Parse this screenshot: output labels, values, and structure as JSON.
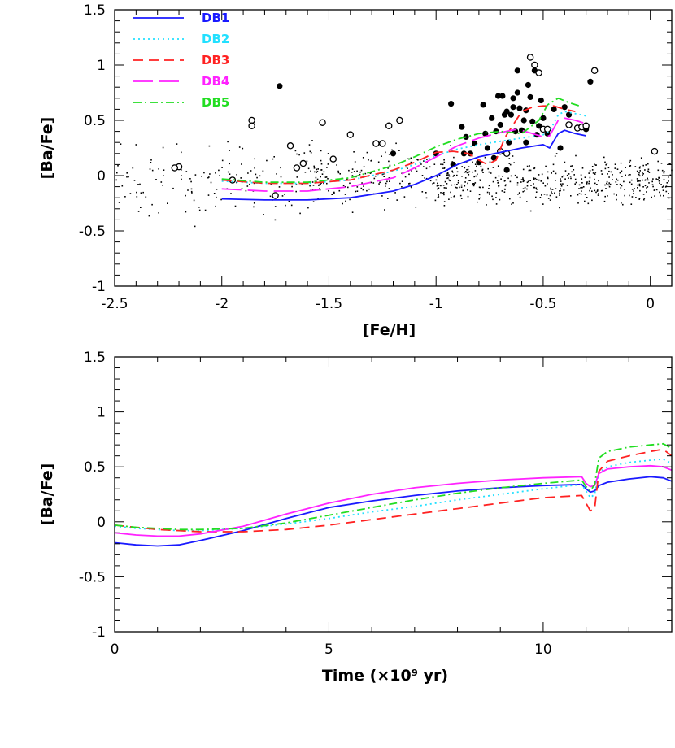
{
  "chart_data": [
    {
      "type": "line",
      "panel": "top",
      "xlabel": "[Fe/H]",
      "ylabel": "[Ba/Fe]",
      "xlim": [
        -2.5,
        0.1
      ],
      "ylim": [
        -1,
        1.5
      ],
      "xticks": [
        -2.5,
        -2,
        -1.5,
        -1,
        -0.5,
        0
      ],
      "xtick_labels": [
        "-2.5",
        "-2",
        "-1.5",
        "-1",
        "-0.5",
        "0"
      ],
      "yticks": [
        -1,
        -0.5,
        0,
        0.5,
        1,
        1.5
      ],
      "ytick_labels": [
        "-1",
        "-0.5",
        "0",
        "0.5",
        "1",
        "1.5"
      ],
      "legend_position": "top-left",
      "series": [
        {
          "name": "DB1",
          "color": "#1a1aff",
          "dash": "solid",
          "x": [
            -2.0,
            -1.8,
            -1.6,
            -1.4,
            -1.2,
            -1.1,
            -1.0,
            -0.9,
            -0.8,
            -0.7,
            -0.6,
            -0.5,
            -0.47,
            -0.43,
            -0.4,
            -0.35,
            -0.3
          ],
          "y": [
            -0.21,
            -0.22,
            -0.22,
            -0.2,
            -0.14,
            -0.08,
            0.0,
            0.1,
            0.17,
            0.21,
            0.25,
            0.28,
            0.25,
            0.38,
            0.41,
            0.38,
            0.36
          ]
        },
        {
          "name": "DB2",
          "color": "#22e0ff",
          "dash": "2,4",
          "x": [
            -2.0,
            -1.8,
            -1.6,
            -1.4,
            -1.2,
            -1.1,
            -1.0,
            -0.9,
            -0.8,
            -0.7,
            -0.6,
            -0.5,
            -0.47,
            -0.43,
            -0.4,
            -0.35,
            -0.3
          ],
          "y": [
            -0.05,
            -0.07,
            -0.07,
            -0.04,
            0.04,
            0.1,
            0.18,
            0.24,
            0.28,
            0.31,
            0.34,
            0.37,
            0.4,
            0.55,
            0.58,
            0.56,
            0.54
          ]
        },
        {
          "name": "DB3",
          "color": "#ff2222",
          "dash": "12,7",
          "x": [
            -2.0,
            -1.8,
            -1.6,
            -1.4,
            -1.2,
            -1.1,
            -1.0,
            -0.92,
            -0.85,
            -0.8,
            -0.76,
            -0.72,
            -0.68,
            -0.64,
            -0.6,
            -0.55,
            -0.5,
            -0.45,
            -0.4,
            -0.35
          ],
          "y": [
            -0.04,
            -0.07,
            -0.07,
            -0.04,
            0.05,
            0.12,
            0.21,
            0.22,
            0.2,
            0.14,
            0.1,
            0.14,
            0.34,
            0.46,
            0.58,
            0.62,
            0.63,
            0.63,
            0.6,
            0.58
          ]
        },
        {
          "name": "DB4",
          "color": "#ff22ff",
          "dash": "24,8",
          "x": [
            -2.0,
            -1.8,
            -1.6,
            -1.4,
            -1.2,
            -1.1,
            -1.0,
            -0.9,
            -0.8,
            -0.7,
            -0.62,
            -0.55,
            -0.5,
            -0.47,
            -0.43,
            -0.4,
            -0.35,
            -0.3
          ],
          "y": [
            -0.12,
            -0.14,
            -0.14,
            -0.1,
            -0.02,
            0.07,
            0.17,
            0.27,
            0.34,
            0.39,
            0.42,
            0.38,
            0.35,
            0.36,
            0.5,
            0.52,
            0.5,
            0.47
          ]
        },
        {
          "name": "DB5",
          "color": "#22dd22",
          "dash": "10,4,2,4",
          "x": [
            -2.0,
            -1.8,
            -1.6,
            -1.4,
            -1.2,
            -1.1,
            -1.0,
            -0.9,
            -0.8,
            -0.7,
            -0.6,
            -0.52,
            -0.48,
            -0.43,
            -0.38,
            -0.33
          ],
          "y": [
            -0.03,
            -0.06,
            -0.06,
            -0.02,
            0.09,
            0.17,
            0.26,
            0.33,
            0.38,
            0.4,
            0.38,
            0.5,
            0.64,
            0.7,
            0.66,
            0.63
          ]
        }
      ],
      "observations_filled": {
        "x": [
          -1.73,
          -0.93,
          -0.87,
          -0.82,
          -0.78,
          -0.74,
          -0.72,
          -0.7,
          -0.68,
          -0.66,
          -0.64,
          -0.62,
          -0.6,
          -0.58,
          -0.56,
          -0.54,
          -0.52,
          -0.5,
          -0.48,
          -0.45,
          -0.42,
          -0.4,
          -0.38,
          -0.3,
          -0.28,
          -0.69,
          -0.65,
          -0.61,
          -0.57,
          -0.55,
          -0.53,
          -0.51,
          -0.76,
          -0.73,
          -0.86,
          -0.71,
          -0.63,
          -0.59,
          -0.67,
          -0.84,
          -0.8,
          -0.77,
          -0.92,
          -0.88,
          -1.0,
          -1.2,
          -0.62,
          -0.64,
          -0.58,
          -0.67
        ],
        "y": [
          0.81,
          0.65,
          0.2,
          0.29,
          0.64,
          0.52,
          0.4,
          0.46,
          0.55,
          0.3,
          0.62,
          0.75,
          0.41,
          0.59,
          0.71,
          0.95,
          0.45,
          0.52,
          0.38,
          0.6,
          0.25,
          0.62,
          0.55,
          0.42,
          0.85,
          0.72,
          0.55,
          0.61,
          0.82,
          0.49,
          0.37,
          0.68,
          0.25,
          0.16,
          0.35,
          0.72,
          0.4,
          0.5,
          0.58,
          0.2,
          0.12,
          0.38,
          0.1,
          0.44,
          0.2,
          0.2,
          0.95,
          0.7,
          0.3,
          0.05
        ],
        "marker": "filled-circle"
      },
      "observations_open": {
        "x": [
          -2.2,
          -2.22,
          -1.95,
          -1.86,
          -1.86,
          -1.75,
          -1.68,
          -1.65,
          -1.62,
          -1.53,
          -1.48,
          -1.4,
          -1.28,
          -1.25,
          -1.22,
          -1.17,
          -0.7,
          -0.67,
          -0.56,
          -0.54,
          -0.52,
          -0.5,
          -0.48,
          -0.38,
          -0.34,
          -0.32,
          -0.3,
          -0.26,
          0.02
        ],
        "y": [
          0.08,
          0.07,
          -0.04,
          0.5,
          0.45,
          -0.18,
          0.27,
          0.07,
          0.11,
          0.48,
          0.15,
          0.37,
          0.29,
          0.29,
          0.45,
          0.5,
          0.22,
          0.2,
          1.07,
          1.0,
          0.93,
          0.42,
          0.42,
          0.46,
          0.43,
          0.44,
          0.45,
          0.95,
          0.22
        ],
        "marker": "open-circle"
      }
    },
    {
      "type": "line",
      "panel": "bottom",
      "xlabel": "Time (×10⁹ yr)",
      "ylabel": "[Ba/Fe]",
      "xlim": [
        0,
        13
      ],
      "ylim": [
        -1,
        1.5
      ],
      "xticks": [
        0,
        5,
        10
      ],
      "xtick_labels": [
        "0",
        "5",
        "10"
      ],
      "yticks": [
        -1,
        -0.5,
        0,
        0.5,
        1,
        1.5
      ],
      "ytick_labels": [
        "-1",
        "-0.5",
        "0",
        "0.5",
        "1",
        "1.5"
      ],
      "series": [
        {
          "name": "DB1",
          "color": "#1a1aff",
          "dash": "solid",
          "x": [
            0,
            0.5,
            1,
            1.5,
            2,
            3,
            4,
            5,
            6,
            7,
            8,
            9,
            10,
            10.9,
            11.0,
            11.1,
            11.2,
            11.3,
            11.5,
            12,
            12.5,
            12.8,
            13
          ],
          "y": [
            -0.19,
            -0.21,
            -0.22,
            -0.21,
            -0.17,
            -0.08,
            0.03,
            0.13,
            0.19,
            0.24,
            0.28,
            0.31,
            0.33,
            0.34,
            0.3,
            0.27,
            0.28,
            0.33,
            0.36,
            0.39,
            0.41,
            0.4,
            0.37
          ]
        },
        {
          "name": "DB2",
          "color": "#22e0ff",
          "dash": "2,4",
          "x": [
            0,
            0.5,
            1,
            1.5,
            2,
            3,
            4,
            5,
            6,
            7,
            8,
            9,
            10,
            10.9,
            11.0,
            11.1,
            11.2,
            11.3,
            11.5,
            12,
            12.5,
            12.8,
            13
          ],
          "y": [
            -0.04,
            -0.06,
            -0.07,
            -0.08,
            -0.08,
            -0.06,
            -0.02,
            0.03,
            0.09,
            0.14,
            0.2,
            0.25,
            0.3,
            0.34,
            0.28,
            0.22,
            0.25,
            0.45,
            0.5,
            0.54,
            0.56,
            0.57,
            0.53
          ]
        },
        {
          "name": "DB3",
          "color": "#ff2222",
          "dash": "12,7",
          "x": [
            0,
            0.5,
            1,
            1.5,
            2,
            3,
            4,
            5,
            6,
            7,
            8,
            9,
            10,
            10.9,
            11.0,
            11.1,
            11.2,
            11.3,
            11.5,
            12,
            12.5,
            12.8,
            13
          ],
          "y": [
            -0.03,
            -0.05,
            -0.07,
            -0.08,
            -0.09,
            -0.09,
            -0.07,
            -0.03,
            0.02,
            0.07,
            0.12,
            0.17,
            0.22,
            0.24,
            0.17,
            0.1,
            0.12,
            0.46,
            0.55,
            0.6,
            0.64,
            0.66,
            0.6
          ]
        },
        {
          "name": "DB4",
          "color": "#ff22ff",
          "dash": "solid",
          "x": [
            0,
            0.5,
            1,
            1.5,
            2,
            3,
            4,
            5,
            6,
            7,
            8,
            9,
            10,
            10.9,
            11.0,
            11.1,
            11.2,
            11.3,
            11.5,
            12,
            12.5,
            12.8,
            13
          ],
          "y": [
            -0.1,
            -0.12,
            -0.13,
            -0.13,
            -0.11,
            -0.04,
            0.07,
            0.17,
            0.25,
            0.31,
            0.35,
            0.38,
            0.4,
            0.41,
            0.35,
            0.32,
            0.33,
            0.44,
            0.48,
            0.5,
            0.51,
            0.5,
            0.47
          ]
        },
        {
          "name": "DB5",
          "color": "#22dd22",
          "dash": "10,4,2,4",
          "x": [
            0,
            0.5,
            1,
            1.5,
            2,
            3,
            4,
            5,
            6,
            7,
            8,
            9,
            10,
            10.9,
            11.0,
            11.1,
            11.2,
            11.3,
            11.5,
            12,
            12.5,
            12.8,
            13
          ],
          "y": [
            -0.03,
            -0.05,
            -0.06,
            -0.07,
            -0.07,
            -0.06,
            -0.01,
            0.06,
            0.13,
            0.2,
            0.26,
            0.31,
            0.35,
            0.38,
            0.32,
            0.28,
            0.34,
            0.58,
            0.64,
            0.68,
            0.7,
            0.71,
            0.67
          ]
        }
      ]
    }
  ]
}
